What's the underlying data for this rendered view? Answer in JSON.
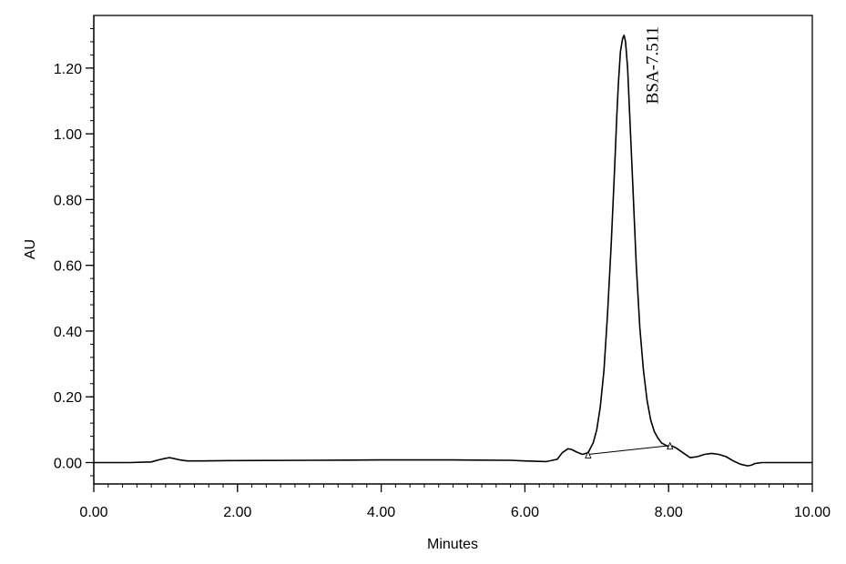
{
  "chart_data": {
    "type": "line",
    "title": "",
    "xlabel": "Minutes",
    "ylabel": "AU",
    "xlim": [
      0,
      10
    ],
    "ylim": [
      -0.065,
      1.36
    ],
    "x_ticks": [
      {
        "value": 0,
        "label": "0.00"
      },
      {
        "value": 2,
        "label": "2.00"
      },
      {
        "value": 4,
        "label": "4.00"
      },
      {
        "value": 6,
        "label": "6.00"
      },
      {
        "value": 8,
        "label": "8.00"
      },
      {
        "value": 10,
        "label": "10.00"
      }
    ],
    "y_ticks": [
      {
        "value": 0,
        "label": "0.00"
      },
      {
        "value": 0.2,
        "label": "0.20"
      },
      {
        "value": 0.4,
        "label": "0.40"
      },
      {
        "value": 0.6,
        "label": "0.60"
      },
      {
        "value": 0.8,
        "label": "0.80"
      },
      {
        "value": 1.0,
        "label": "1.00"
      },
      {
        "value": 1.2,
        "label": "1.20"
      }
    ],
    "grid": false,
    "series": [
      {
        "x": [
          0.0,
          0.5,
          0.8,
          0.9,
          1.0,
          1.05,
          1.1,
          1.2,
          1.3,
          1.5,
          2.0,
          3.0,
          4.0,
          5.0,
          5.8,
          6.0,
          6.3,
          6.45,
          6.52,
          6.6,
          6.65,
          6.72,
          6.8,
          6.88,
          6.95,
          7.0,
          7.05,
          7.1,
          7.15,
          7.2,
          7.25,
          7.28,
          7.3,
          7.33,
          7.36,
          7.38,
          7.4,
          7.43,
          7.46,
          7.5,
          7.55,
          7.6,
          7.65,
          7.7,
          7.75,
          7.8,
          7.85,
          7.9,
          8.0,
          8.05,
          8.1,
          8.2,
          8.3,
          8.4,
          8.5,
          8.6,
          8.7,
          8.8,
          8.9,
          9.0,
          9.1,
          9.15,
          9.2,
          9.3,
          9.5,
          10.0
        ],
        "y": [
          0.0,
          0.0,
          0.002,
          0.008,
          0.013,
          0.015,
          0.013,
          0.008,
          0.005,
          0.005,
          0.006,
          0.007,
          0.008,
          0.008,
          0.007,
          0.005,
          0.003,
          0.01,
          0.03,
          0.042,
          0.04,
          0.032,
          0.025,
          0.03,
          0.06,
          0.1,
          0.17,
          0.28,
          0.45,
          0.66,
          0.9,
          1.06,
          1.15,
          1.25,
          1.29,
          1.3,
          1.28,
          1.2,
          1.05,
          0.85,
          0.6,
          0.41,
          0.28,
          0.19,
          0.13,
          0.095,
          0.075,
          0.06,
          0.048,
          0.05,
          0.045,
          0.03,
          0.015,
          0.018,
          0.025,
          0.028,
          0.025,
          0.018,
          0.005,
          -0.005,
          -0.01,
          -0.008,
          -0.003,
          0.0,
          0.0,
          0.0
        ]
      }
    ],
    "baseline": {
      "x": [
        6.88,
        8.02
      ],
      "y": [
        0.025,
        0.052
      ]
    },
    "annotations": [
      {
        "text": "BSA-7.511",
        "x": 7.511
      }
    ]
  }
}
